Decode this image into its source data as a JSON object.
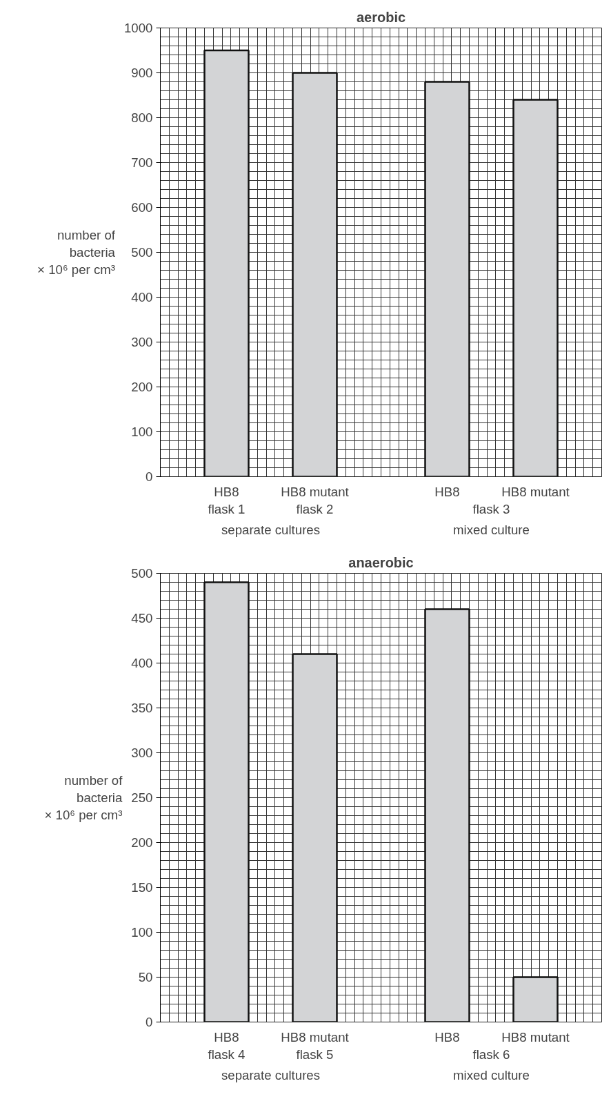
{
  "chart_data": [
    {
      "type": "bar",
      "title": "aerobic",
      "ylabel": "number of\nbacteria\n× 10⁶ per cm³",
      "categories": [
        "HB8\nflask 1",
        "HB8 mutant\nflask 2",
        "HB8",
        "HB8 mutant"
      ],
      "values": [
        950,
        900,
        880,
        840
      ],
      "color": "#d3d4d6",
      "ylim": [
        0,
        1000
      ],
      "yticks": [
        0,
        100,
        200,
        300,
        400,
        500,
        600,
        700,
        800,
        900,
        1000
      ],
      "grid": true,
      "annotations": [
        "separate cultures",
        "flask 3",
        "mixed culture"
      ]
    },
    {
      "type": "bar",
      "title": "anaerobic",
      "ylabel": "number of\nbacteria\n× 10⁶ per cm³",
      "categories": [
        "HB8\nflask 4",
        "HB8 mutant\nflask 5",
        "HB8",
        "HB8 mutant"
      ],
      "values": [
        490,
        410,
        460,
        50
      ],
      "color": "#d3d4d6",
      "ylim": [
        0,
        500
      ],
      "yticks": [
        0,
        50,
        100,
        150,
        200,
        250,
        300,
        350,
        400,
        450,
        500
      ],
      "grid": true,
      "annotations": [
        "separate cultures",
        "flask 6",
        "mixed culture"
      ]
    }
  ]
}
